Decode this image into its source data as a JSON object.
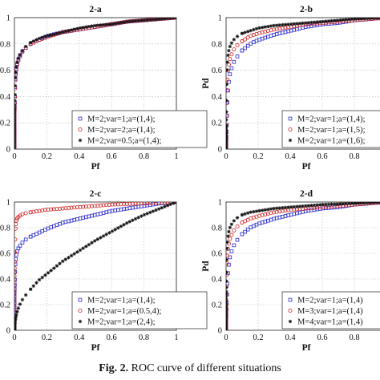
{
  "caption": {
    "label": "Fig. 2.",
    "text": "ROC curve of different situations"
  },
  "colors": {
    "blue": "#2a2ad0",
    "red": "#d02020",
    "black": "#111111"
  },
  "chart_data": [
    {
      "type": "scatter",
      "title": "2-a",
      "xlabel": "Pf",
      "ylabel": "",
      "xlim": [
        0,
        1
      ],
      "ylim": [
        0,
        1
      ],
      "xticks": [
        "0",
        "0.2",
        "0.4",
        "0.6",
        "0.8",
        "1"
      ],
      "yticks": [
        "0",
        "0.2",
        "0.4",
        "0.6",
        "0.8",
        "1"
      ],
      "grid": true,
      "legend_position": "bottom-right",
      "series": [
        {
          "name": "M=2;var=1;a=(1,4);",
          "marker": "square",
          "color": "#2a2ad0",
          "x": [
            0,
            0.001,
            0.005,
            0.01,
            0.02,
            0.04,
            0.06,
            0.1,
            0.15,
            0.2,
            0.3,
            0.4,
            0.5,
            0.6,
            0.7,
            0.8,
            0.9,
            1
          ],
          "y": [
            0,
            0.3,
            0.52,
            0.6,
            0.67,
            0.73,
            0.76,
            0.8,
            0.83,
            0.86,
            0.89,
            0.91,
            0.93,
            0.95,
            0.97,
            0.98,
            0.99,
            1
          ]
        },
        {
          "name": "M=2;var=2;a=(1,4);",
          "marker": "circle",
          "color": "#d02020",
          "x": [
            0,
            0.001,
            0.005,
            0.01,
            0.02,
            0.04,
            0.06,
            0.1,
            0.15,
            0.2,
            0.3,
            0.4,
            0.5,
            0.6,
            0.7,
            0.8,
            0.9,
            1
          ],
          "y": [
            0,
            0.29,
            0.51,
            0.59,
            0.66,
            0.72,
            0.76,
            0.8,
            0.83,
            0.85,
            0.89,
            0.91,
            0.93,
            0.95,
            0.97,
            0.98,
            0.99,
            1
          ]
        },
        {
          "name": "M=2;var=0.5;a=(1,4);",
          "marker": "star",
          "color": "#111111",
          "x": [
            0,
            0.001,
            0.005,
            0.01,
            0.02,
            0.04,
            0.06,
            0.1,
            0.15,
            0.2,
            0.3,
            0.4,
            0.5,
            0.6,
            0.7,
            0.8,
            0.9,
            1
          ],
          "y": [
            0,
            0.31,
            0.53,
            0.61,
            0.68,
            0.73,
            0.77,
            0.81,
            0.84,
            0.86,
            0.89,
            0.92,
            0.94,
            0.95,
            0.97,
            0.98,
            0.99,
            1
          ]
        }
      ]
    },
    {
      "type": "scatter",
      "title": "2-b",
      "xlabel": "Pf",
      "ylabel": "Pd",
      "xlim": [
        0,
        1
      ],
      "ylim": [
        0,
        1
      ],
      "xticks": [
        "0",
        "0.2",
        "0.4",
        "0.6",
        "0.8"
      ],
      "yticks": [
        "0",
        "0.2",
        "0.4",
        "0.6",
        "0.8",
        "1"
      ],
      "grid": true,
      "legend_position": "bottom-right",
      "series": [
        {
          "name": "M=2;var=1;a=(1,4);",
          "marker": "square",
          "color": "#2a2ad0",
          "x": [
            0,
            0.001,
            0.005,
            0.01,
            0.02,
            0.04,
            0.06,
            0.1,
            0.15,
            0.2,
            0.3,
            0.4,
            0.5,
            0.6,
            0.7,
            0.8,
            0.9,
            1
          ],
          "y": [
            0,
            0.05,
            0.22,
            0.42,
            0.55,
            0.64,
            0.69,
            0.75,
            0.8,
            0.83,
            0.87,
            0.9,
            0.93,
            0.95,
            0.96,
            0.98,
            0.99,
            1
          ]
        },
        {
          "name": "M=2;var=1;a=(1,5);",
          "marker": "circle",
          "color": "#d02020",
          "x": [
            0,
            0.001,
            0.005,
            0.01,
            0.02,
            0.04,
            0.06,
            0.1,
            0.15,
            0.2,
            0.3,
            0.4,
            0.5,
            0.6,
            0.7,
            0.8,
            0.9,
            1
          ],
          "y": [
            0,
            0.1,
            0.42,
            0.58,
            0.67,
            0.74,
            0.78,
            0.82,
            0.86,
            0.88,
            0.91,
            0.93,
            0.95,
            0.96,
            0.97,
            0.98,
            0.99,
            1
          ]
        },
        {
          "name": "M=2;var=1;a=(1,6);",
          "marker": "star",
          "color": "#111111",
          "x": [
            0,
            0.001,
            0.005,
            0.01,
            0.02,
            0.04,
            0.06,
            0.1,
            0.15,
            0.2,
            0.3,
            0.4,
            0.5,
            0.6,
            0.7,
            0.8,
            0.9,
            1
          ],
          "y": [
            0,
            0.18,
            0.58,
            0.7,
            0.77,
            0.82,
            0.85,
            0.88,
            0.9,
            0.92,
            0.94,
            0.95,
            0.96,
            0.97,
            0.98,
            0.99,
            0.995,
            1
          ]
        }
      ]
    },
    {
      "type": "scatter",
      "title": "2-c",
      "xlabel": "Pf",
      "ylabel": "",
      "xlim": [
        0,
        1
      ],
      "ylim": [
        0,
        1
      ],
      "xticks": [
        "0",
        "0.2",
        "0.4",
        "0.6",
        "0.8",
        "1"
      ],
      "yticks": [
        "0",
        "0.2",
        "0.4",
        "0.6",
        "0.8",
        "1"
      ],
      "grid": true,
      "legend_position": "bottom-right",
      "series": [
        {
          "name": "M=2;var=1;a=(1,4);",
          "marker": "square",
          "color": "#2a2ad0",
          "x": [
            0,
            0.001,
            0.005,
            0.01,
            0.02,
            0.04,
            0.06,
            0.1,
            0.15,
            0.2,
            0.3,
            0.4,
            0.5,
            0.6,
            0.7,
            0.8,
            0.9,
            1
          ],
          "y": [
            0,
            0.3,
            0.5,
            0.58,
            0.63,
            0.67,
            0.7,
            0.73,
            0.76,
            0.79,
            0.84,
            0.87,
            0.9,
            0.93,
            0.95,
            0.97,
            0.99,
            1
          ]
        },
        {
          "name": "M=2;var=1;a=(0.5,4);",
          "marker": "circle",
          "color": "#d02020",
          "x": [
            0,
            0.001,
            0.005,
            0.01,
            0.02,
            0.04,
            0.06,
            0.1,
            0.15,
            0.2,
            0.3,
            0.4,
            0.5,
            0.6,
            0.7,
            0.8,
            0.9,
            1
          ],
          "y": [
            0,
            0.45,
            0.78,
            0.85,
            0.88,
            0.9,
            0.91,
            0.92,
            0.93,
            0.94,
            0.95,
            0.96,
            0.97,
            0.98,
            0.985,
            0.99,
            0.995,
            1
          ]
        },
        {
          "name": "M=2;var=1;a=(2,4);",
          "marker": "star",
          "color": "#111111",
          "x": [
            0,
            0.001,
            0.005,
            0.01,
            0.02,
            0.04,
            0.06,
            0.1,
            0.15,
            0.2,
            0.3,
            0.4,
            0.5,
            0.6,
            0.7,
            0.8,
            0.9,
            1
          ],
          "y": [
            0,
            0.03,
            0.08,
            0.11,
            0.16,
            0.22,
            0.26,
            0.32,
            0.39,
            0.44,
            0.54,
            0.62,
            0.7,
            0.77,
            0.84,
            0.9,
            0.95,
            1
          ]
        }
      ]
    },
    {
      "type": "scatter",
      "title": "2-d",
      "xlabel": "Pf",
      "ylabel": "Pd",
      "xlim": [
        0,
        1
      ],
      "ylim": [
        0,
        1
      ],
      "xticks": [
        "0",
        "0.2",
        "0.4",
        "0.6",
        "0.8"
      ],
      "yticks": [
        "0",
        "0.2",
        "0.4",
        "0.6",
        "0.8",
        "1"
      ],
      "grid": true,
      "legend_position": "bottom-right",
      "series": [
        {
          "name": "M=2;var=1;a=(1,4)",
          "marker": "square",
          "color": "#2a2ad0",
          "x": [
            0,
            0.001,
            0.005,
            0.01,
            0.02,
            0.04,
            0.06,
            0.1,
            0.15,
            0.2,
            0.3,
            0.4,
            0.5,
            0.6,
            0.7,
            0.8,
            0.9,
            1
          ],
          "y": [
            0,
            0.08,
            0.25,
            0.42,
            0.55,
            0.64,
            0.69,
            0.75,
            0.8,
            0.83,
            0.87,
            0.9,
            0.93,
            0.95,
            0.96,
            0.98,
            0.99,
            1
          ]
        },
        {
          "name": "M=3;var=1;a=(1,4)",
          "marker": "circle",
          "color": "#d02020",
          "x": [
            0,
            0.001,
            0.005,
            0.01,
            0.02,
            0.04,
            0.06,
            0.1,
            0.15,
            0.2,
            0.3,
            0.4,
            0.5,
            0.6,
            0.7,
            0.8,
            0.9,
            1
          ],
          "y": [
            0,
            0.2,
            0.5,
            0.62,
            0.7,
            0.76,
            0.8,
            0.84,
            0.87,
            0.89,
            0.92,
            0.94,
            0.95,
            0.96,
            0.97,
            0.98,
            0.99,
            1
          ]
        },
        {
          "name": "M=4;var=1;a=(1,4)",
          "marker": "star",
          "color": "#111111",
          "x": [
            0,
            0.001,
            0.005,
            0.01,
            0.02,
            0.04,
            0.06,
            0.1,
            0.15,
            0.2,
            0.3,
            0.4,
            0.5,
            0.6,
            0.7,
            0.8,
            0.9,
            1
          ],
          "y": [
            0,
            0.3,
            0.62,
            0.72,
            0.79,
            0.84,
            0.87,
            0.9,
            0.92,
            0.93,
            0.95,
            0.96,
            0.97,
            0.98,
            0.985,
            0.99,
            0.995,
            1
          ]
        }
      ]
    }
  ]
}
